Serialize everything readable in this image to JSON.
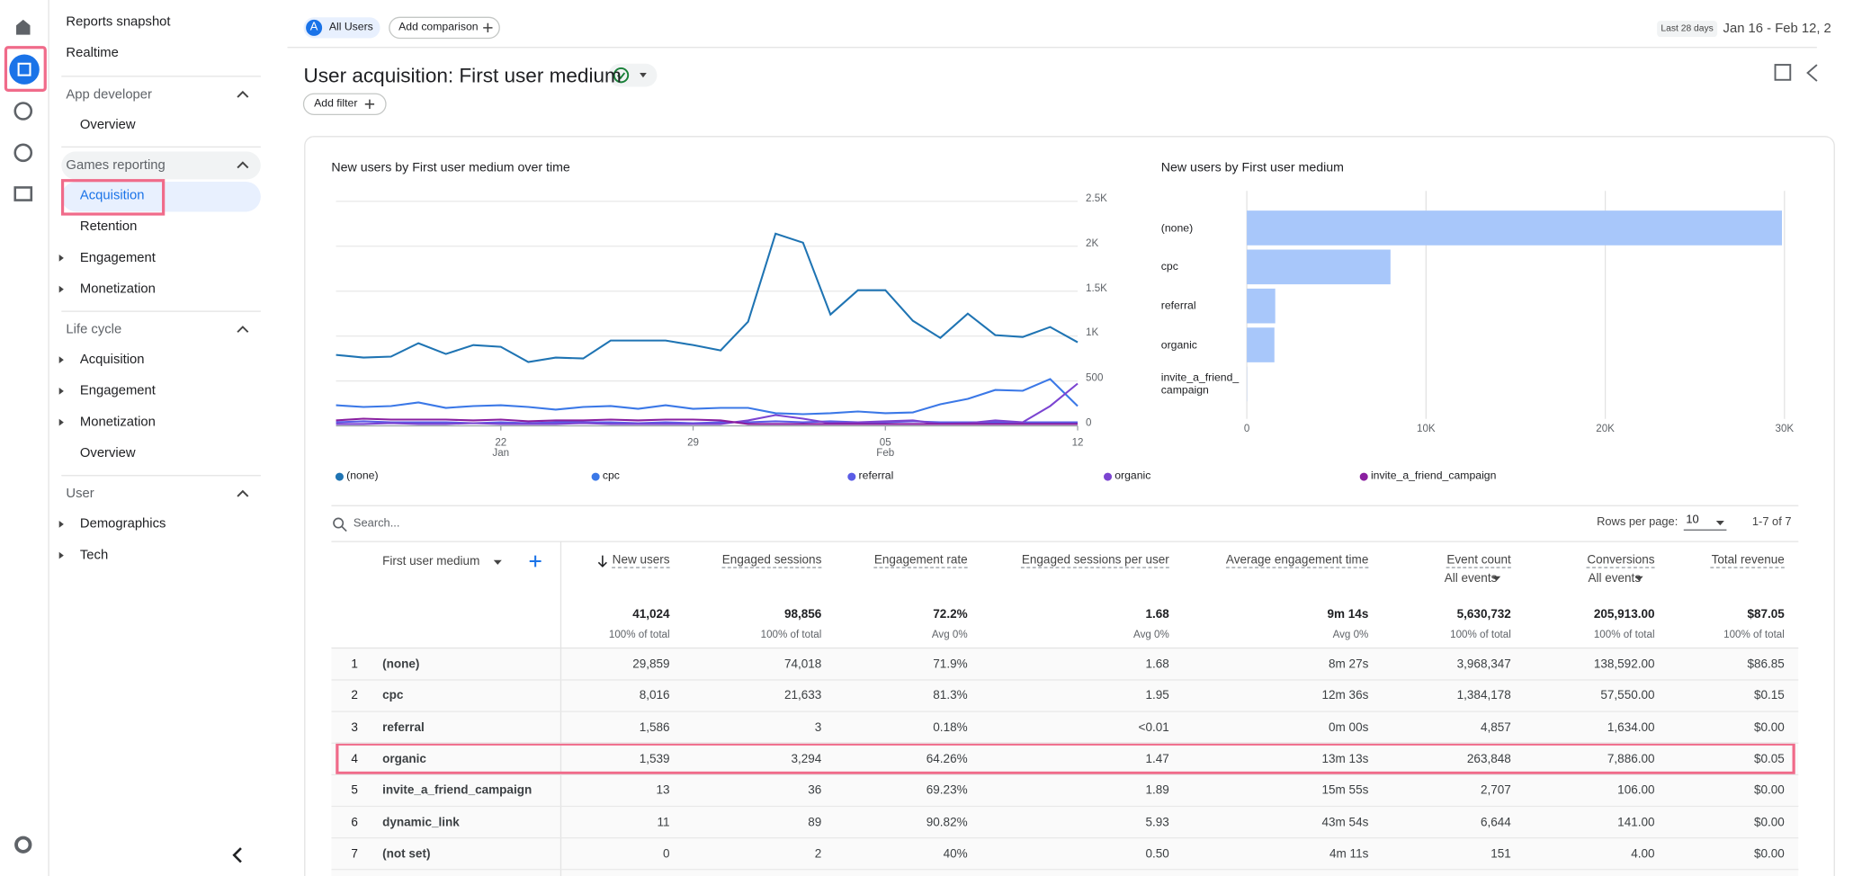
{
  "nav": {
    "top": [
      "Reports snapshot",
      "Realtime"
    ],
    "sections": [
      {
        "title": "App developer",
        "items": [
          "Overview"
        ]
      },
      {
        "title": "Games reporting",
        "items": [
          "Acquisition",
          "Retention",
          "Engagement",
          "Monetization"
        ]
      },
      {
        "title": "Life cycle",
        "items": [
          "Acquisition",
          "Engagement",
          "Monetization",
          "Overview"
        ]
      },
      {
        "title": "User",
        "items": [
          "Demographics",
          "Tech"
        ]
      }
    ]
  },
  "header": {
    "avatar": "A",
    "segment": "All Users",
    "add_comparison": "Add comparison",
    "date_range_label": "Last 28 days",
    "date_range": "Jan 16 - Feb 12, 2",
    "title": "User acquisition: First user medium",
    "add_filter": "Add filter"
  },
  "chart_data": [
    {
      "type": "line",
      "title": "New users by First user medium over time",
      "x": [
        "16",
        "17",
        "18",
        "19",
        "20",
        "21",
        "22",
        "23",
        "24",
        "25",
        "26",
        "27",
        "28",
        "29",
        "30",
        "31",
        "01",
        "02",
        "03",
        "04",
        "05",
        "06",
        "07",
        "08",
        "09",
        "10",
        "11",
        "12"
      ],
      "xticks": [
        {
          "value": "22",
          "sublabel": "Jan"
        },
        {
          "value": "29"
        },
        {
          "value": "05",
          "sublabel": "Feb"
        },
        {
          "value": "12"
        }
      ],
      "ylim": [
        0,
        2500
      ],
      "yticks": [
        0,
        500,
        {
          "value": 1000,
          "label": "1K"
        },
        {
          "value": 1500,
          "label": "1.5K"
        },
        {
          "value": 2000,
          "label": "2K"
        },
        {
          "value": 2500,
          "label": "2.5K"
        }
      ],
      "grid": true,
      "series": [
        {
          "name": "(none)",
          "color": "#1f74b3",
          "values": [
            790,
            760,
            770,
            920,
            800,
            900,
            880,
            710,
            760,
            750,
            950,
            950,
            950,
            900,
            840,
            1160,
            2140,
            2040,
            1240,
            1510,
            1510,
            1170,
            980,
            1250,
            1010,
            990,
            1100,
            930
          ]
        },
        {
          "name": "cpc",
          "color": "#3b78e7",
          "values": [
            230,
            210,
            220,
            260,
            200,
            220,
            230,
            210,
            180,
            210,
            220,
            190,
            230,
            190,
            200,
            200,
            140,
            130,
            140,
            160,
            140,
            150,
            240,
            300,
            400,
            390,
            520,
            220
          ]
        },
        {
          "name": "referral",
          "color": "#5a5ce6",
          "values": [
            40,
            50,
            40,
            40,
            40,
            30,
            40,
            30,
            40,
            40,
            40,
            30,
            40,
            30,
            40,
            40,
            50,
            40,
            50,
            40,
            40,
            50,
            40,
            40,
            40,
            40,
            40,
            40
          ]
        },
        {
          "name": "organic",
          "color": "#7b44d1",
          "values": [
            20,
            20,
            30,
            20,
            20,
            30,
            20,
            20,
            20,
            30,
            20,
            20,
            20,
            20,
            20,
            60,
            120,
            80,
            30,
            40,
            50,
            60,
            20,
            30,
            60,
            40,
            220,
            470
          ]
        },
        {
          "name": "invite_a_friend_campaign",
          "color": "#8a1fa0",
          "values": [
            60,
            80,
            70,
            70,
            70,
            60,
            70,
            50,
            60,
            60,
            70,
            60,
            70,
            70,
            60,
            20,
            20,
            20,
            20,
            20,
            20,
            20,
            20,
            20,
            20,
            20,
            20,
            20
          ]
        }
      ]
    },
    {
      "type": "bar",
      "title": "New users by First user medium",
      "categories": [
        "(none)",
        "cpc",
        "referral",
        "organic",
        "invite_a_friend_campaign"
      ],
      "values": [
        29859,
        8016,
        1586,
        1539,
        13
      ],
      "color": "#a8c7fa",
      "xlim": [
        0,
        30000
      ],
      "xticks": [
        0,
        {
          "value": 10000,
          "label": "10K"
        },
        {
          "value": 20000,
          "label": "20K"
        },
        {
          "value": 30000,
          "label": "30K"
        }
      ],
      "grid": true
    }
  ],
  "table": {
    "search_placeholder": "Search...",
    "rows_per_page_label": "Rows per page:",
    "rows_per_page": "10",
    "pagination": "1-7 of 7",
    "dimension": "First user medium",
    "columns": [
      {
        "name": "New users"
      },
      {
        "name": "Engaged sessions"
      },
      {
        "name": "Engagement rate"
      },
      {
        "name": "Engaged sessions per user"
      },
      {
        "name": "Average engagement time"
      },
      {
        "name": "Event count",
        "sub": "All events"
      },
      {
        "name": "Conversions",
        "sub": "All events"
      },
      {
        "name": "Total revenue"
      }
    ],
    "totals": [
      {
        "value": "41,024",
        "note": "100% of total"
      },
      {
        "value": "98,856",
        "note": "100% of total"
      },
      {
        "value": "72.2%",
        "note": "Avg 0%"
      },
      {
        "value": "1.68",
        "note": "Avg 0%"
      },
      {
        "value": "9m 14s",
        "note": "Avg 0%"
      },
      {
        "value": "5,630,732",
        "note": "100% of total"
      },
      {
        "value": "205,913.00",
        "note": "100% of total"
      },
      {
        "value": "$87.05",
        "note": "100% of total"
      }
    ],
    "rows": [
      [
        "1",
        "(none)",
        "29,859",
        "74,018",
        "71.9%",
        "1.68",
        "8m 27s",
        "3,968,347",
        "138,592.00",
        "$86.85"
      ],
      [
        "2",
        "cpc",
        "8,016",
        "21,633",
        "81.3%",
        "1.95",
        "12m 36s",
        "1,384,178",
        "57,550.00",
        "$0.15"
      ],
      [
        "3",
        "referral",
        "1,586",
        "3",
        "0.18%",
        "<0.01",
        "0m 00s",
        "4,857",
        "1,634.00",
        "$0.00"
      ],
      [
        "4",
        "organic",
        "1,539",
        "3,294",
        "64.26%",
        "1.47",
        "13m 13s",
        "263,848",
        "7,886.00",
        "$0.05"
      ],
      [
        "5",
        "invite_a_friend_campaign",
        "13",
        "36",
        "69.23%",
        "1.89",
        "15m 55s",
        "2,707",
        "106.00",
        "$0.00"
      ],
      [
        "6",
        "dynamic_link",
        "11",
        "89",
        "90.82%",
        "5.93",
        "43m 54s",
        "6,644",
        "141.00",
        "$0.00"
      ],
      [
        "7",
        "(not set)",
        "0",
        "2",
        "40%",
        "0.50",
        "4m 11s",
        "151",
        "4.00",
        "$0.00"
      ]
    ]
  }
}
